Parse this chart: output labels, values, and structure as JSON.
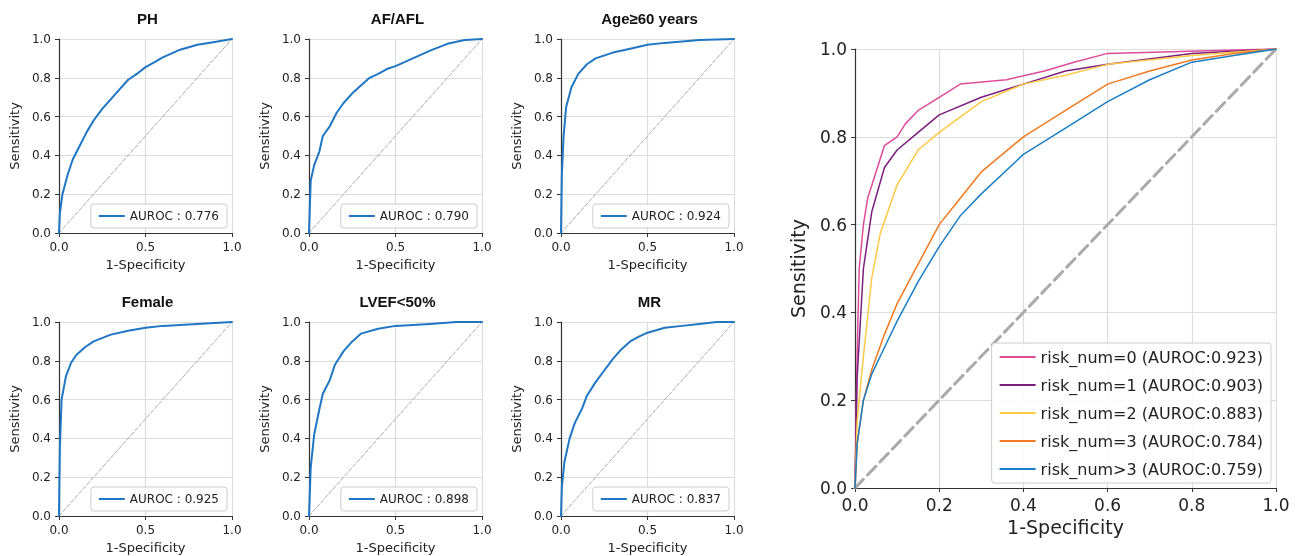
{
  "chart_data": [
    {
      "type": "line",
      "title": "PH",
      "xlabel": "1-Specificity",
      "ylabel": "Sensitivity",
      "xlim": [
        0,
        1
      ],
      "ylim": [
        0,
        1
      ],
      "xticks": [
        {
          "value": 0,
          "label": "0.0"
        },
        {
          "value": 0.5,
          "label": "0.5"
        },
        {
          "value": 1,
          "label": "1.0"
        }
      ],
      "yticks": [
        {
          "value": 0,
          "label": "0.0"
        },
        {
          "value": 0.2,
          "label": "0.2"
        },
        {
          "value": 0.4,
          "label": "0.4"
        },
        {
          "value": 0.6,
          "label": "0.6"
        },
        {
          "value": 0.8,
          "label": "0.8"
        },
        {
          "value": 1,
          "label": "1.0"
        }
      ],
      "grid": true,
      "legend": "bottom right",
      "series": [
        {
          "name": "AUROC : 0.776",
          "color": "#1f77c4",
          "x": [
            0,
            0.005,
            0.02,
            0.05,
            0.08,
            0.12,
            0.16,
            0.2,
            0.25,
            0.3,
            0.35,
            0.4,
            0.45,
            0.5,
            0.55,
            0.6,
            0.7,
            0.8,
            0.9,
            1
          ],
          "values": [
            0,
            0.1,
            0.2,
            0.3,
            0.38,
            0.45,
            0.52,
            0.58,
            0.64,
            0.69,
            0.74,
            0.79,
            0.82,
            0.855,
            0.88,
            0.905,
            0.945,
            0.97,
            0.985,
            1
          ]
        },
        {
          "color": "#aaaaaa",
          "line_style": "dashed",
          "x": [
            0,
            1
          ],
          "values": [
            0,
            1
          ]
        }
      ]
    },
    {
      "type": "line",
      "title": "AF/AFL",
      "xlabel": "1-Specificity",
      "ylabel": "Sensitivity",
      "xlim": [
        0,
        1
      ],
      "ylim": [
        0,
        1
      ],
      "xticks": [
        {
          "value": 0,
          "label": "0.0"
        },
        {
          "value": 0.5,
          "label": "0.5"
        },
        {
          "value": 1,
          "label": "1.0"
        }
      ],
      "yticks": [
        {
          "value": 0,
          "label": "0.0"
        },
        {
          "value": 0.2,
          "label": "0.2"
        },
        {
          "value": 0.4,
          "label": "0.4"
        },
        {
          "value": 0.6,
          "label": "0.6"
        },
        {
          "value": 0.8,
          "label": "0.8"
        },
        {
          "value": 1,
          "label": "1.0"
        }
      ],
      "grid": true,
      "legend": "bottom right",
      "series": [
        {
          "name": "AUROC : 0.790",
          "color": "#1f77c4",
          "x": [
            0,
            0.01,
            0.03,
            0.06,
            0.08,
            0.12,
            0.16,
            0.2,
            0.25,
            0.3,
            0.35,
            0.4,
            0.45,
            0.5,
            0.6,
            0.7,
            0.8,
            0.9,
            1
          ],
          "values": [
            0,
            0.27,
            0.35,
            0.42,
            0.5,
            0.55,
            0.62,
            0.67,
            0.72,
            0.76,
            0.8,
            0.82,
            0.845,
            0.86,
            0.9,
            0.94,
            0.975,
            0.995,
            1
          ]
        },
        {
          "color": "#aaaaaa",
          "line_style": "dashed",
          "x": [
            0,
            1
          ],
          "values": [
            0,
            1
          ]
        }
      ]
    },
    {
      "type": "line",
      "title": "Age≥60 years",
      "xlabel": "1-Specificity",
      "ylabel": "Sensitivity",
      "xlim": [
        0,
        1
      ],
      "ylim": [
        0,
        1
      ],
      "xticks": [
        {
          "value": 0,
          "label": "0.0"
        },
        {
          "value": 0.5,
          "label": "0.5"
        },
        {
          "value": 1,
          "label": "1.0"
        }
      ],
      "yticks": [
        {
          "value": 0,
          "label": "0.0"
        },
        {
          "value": 0.2,
          "label": "0.2"
        },
        {
          "value": 0.4,
          "label": "0.4"
        },
        {
          "value": 0.6,
          "label": "0.6"
        },
        {
          "value": 0.8,
          "label": "0.8"
        },
        {
          "value": 1,
          "label": "1.0"
        }
      ],
      "grid": true,
      "legend": "bottom right",
      "series": [
        {
          "name": "AUROC : 0.924",
          "color": "#1f77c4",
          "x": [
            0,
            0.005,
            0.015,
            0.03,
            0.06,
            0.1,
            0.15,
            0.2,
            0.3,
            0.4,
            0.5,
            0.6,
            0.8,
            1
          ],
          "values": [
            0,
            0.3,
            0.5,
            0.65,
            0.75,
            0.82,
            0.87,
            0.9,
            0.93,
            0.95,
            0.97,
            0.98,
            0.995,
            1
          ]
        },
        {
          "color": "#aaaaaa",
          "line_style": "dashed",
          "x": [
            0,
            1
          ],
          "values": [
            0,
            1
          ]
        }
      ]
    },
    {
      "type": "line",
      "title": "Female",
      "xlabel": "1-Specificity",
      "ylabel": "Sensitivity",
      "xlim": [
        0,
        1
      ],
      "ylim": [
        0,
        1
      ],
      "xticks": [
        {
          "value": 0,
          "label": "0.0"
        },
        {
          "value": 0.5,
          "label": "0.5"
        },
        {
          "value": 1,
          "label": "1.0"
        }
      ],
      "yticks": [
        {
          "value": 0,
          "label": "0.0"
        },
        {
          "value": 0.2,
          "label": "0.2"
        },
        {
          "value": 0.4,
          "label": "0.4"
        },
        {
          "value": 0.6,
          "label": "0.6"
        },
        {
          "value": 0.8,
          "label": "0.8"
        },
        {
          "value": 1,
          "label": "1.0"
        }
      ],
      "grid": true,
      "legend": "bottom right",
      "series": [
        {
          "name": "AUROC : 0.925",
          "color": "#1f77c4",
          "x": [
            0,
            0.005,
            0.015,
            0.04,
            0.07,
            0.1,
            0.15,
            0.2,
            0.3,
            0.4,
            0.5,
            0.6,
            0.8,
            1
          ],
          "values": [
            0,
            0.35,
            0.6,
            0.72,
            0.79,
            0.83,
            0.87,
            0.9,
            0.935,
            0.955,
            0.97,
            0.98,
            0.99,
            1
          ]
        },
        {
          "color": "#aaaaaa",
          "line_style": "dashed",
          "x": [
            0,
            1
          ],
          "values": [
            0,
            1
          ]
        }
      ]
    },
    {
      "type": "line",
      "title": "LVEF<50%",
      "xlabel": "1-Specificity",
      "ylabel": "Sensitivity",
      "xlim": [
        0,
        1
      ],
      "ylim": [
        0,
        1
      ],
      "xticks": [
        {
          "value": 0,
          "label": "0.0"
        },
        {
          "value": 0.5,
          "label": "0.5"
        },
        {
          "value": 1,
          "label": "1.0"
        }
      ],
      "yticks": [
        {
          "value": 0,
          "label": "0.0"
        },
        {
          "value": 0.2,
          "label": "0.2"
        },
        {
          "value": 0.4,
          "label": "0.4"
        },
        {
          "value": 0.6,
          "label": "0.6"
        },
        {
          "value": 0.8,
          "label": "0.8"
        },
        {
          "value": 1,
          "label": "1.0"
        }
      ],
      "grid": true,
      "legend": "bottom right",
      "series": [
        {
          "name": "AUROC : 0.898",
          "color": "#1f77c4",
          "x": [
            0,
            0.01,
            0.03,
            0.06,
            0.08,
            0.12,
            0.15,
            0.2,
            0.25,
            0.3,
            0.4,
            0.5,
            0.7,
            0.85,
            1
          ],
          "values": [
            0,
            0.25,
            0.42,
            0.55,
            0.63,
            0.7,
            0.78,
            0.85,
            0.9,
            0.94,
            0.965,
            0.98,
            0.99,
            1,
            1
          ]
        },
        {
          "color": "#aaaaaa",
          "line_style": "dashed",
          "x": [
            0,
            1
          ],
          "values": [
            0,
            1
          ]
        }
      ]
    },
    {
      "type": "line",
      "title": "MR",
      "xlabel": "1-Specificity",
      "ylabel": "Sensitivity",
      "xlim": [
        0,
        1
      ],
      "ylim": [
        0,
        1
      ],
      "xticks": [
        {
          "value": 0,
          "label": "0.0"
        },
        {
          "value": 0.5,
          "label": "0.5"
        },
        {
          "value": 1,
          "label": "1.0"
        }
      ],
      "yticks": [
        {
          "value": 0,
          "label": "0.0"
        },
        {
          "value": 0.2,
          "label": "0.2"
        },
        {
          "value": 0.4,
          "label": "0.4"
        },
        {
          "value": 0.6,
          "label": "0.6"
        },
        {
          "value": 0.8,
          "label": "0.8"
        },
        {
          "value": 1,
          "label": "1.0"
        }
      ],
      "grid": true,
      "legend": "bottom right",
      "series": [
        {
          "name": "AUROC : 0.837",
          "color": "#1f77c4",
          "x": [
            0,
            0.005,
            0.02,
            0.05,
            0.08,
            0.12,
            0.15,
            0.2,
            0.25,
            0.3,
            0.35,
            0.4,
            0.45,
            0.5,
            0.6,
            0.7,
            0.8,
            0.9,
            1
          ],
          "values": [
            0,
            0.15,
            0.28,
            0.4,
            0.48,
            0.55,
            0.62,
            0.69,
            0.75,
            0.81,
            0.86,
            0.9,
            0.925,
            0.945,
            0.97,
            0.98,
            0.99,
            1,
            1
          ]
        },
        {
          "color": "#aaaaaa",
          "line_style": "dashed",
          "x": [
            0,
            1
          ],
          "values": [
            0,
            1
          ]
        }
      ]
    },
    {
      "type": "line",
      "xlabel": "1-Specificity",
      "ylabel": "Sensitivity",
      "xlim": [
        0,
        1
      ],
      "ylim": [
        0,
        1
      ],
      "xticks": [
        {
          "value": 0,
          "label": "0.0"
        },
        {
          "value": 0.2,
          "label": "0.2"
        },
        {
          "value": 0.4,
          "label": "0.4"
        },
        {
          "value": 0.6,
          "label": "0.6"
        },
        {
          "value": 0.8,
          "label": "0.8"
        },
        {
          "value": 1,
          "label": "1.0"
        }
      ],
      "yticks": [
        {
          "value": 0,
          "label": "0.0"
        },
        {
          "value": 0.2,
          "label": "0.2"
        },
        {
          "value": 0.4,
          "label": "0.4"
        },
        {
          "value": 0.6,
          "label": "0.6"
        },
        {
          "value": 0.8,
          "label": "0.8"
        },
        {
          "value": 1,
          "label": "1.0"
        }
      ],
      "grid": true,
      "legend": "bottom right",
      "series": [
        {
          "name": "risk_num=0 (AUROC:0.923)",
          "color": "#dd4c99",
          "x": [
            0,
            0.005,
            0.01,
            0.02,
            0.03,
            0.05,
            0.07,
            0.1,
            0.12,
            0.15,
            0.2,
            0.25,
            0.36,
            0.45,
            0.52,
            0.6,
            1
          ],
          "values": [
            0,
            0.3,
            0.5,
            0.6,
            0.66,
            0.72,
            0.78,
            0.8,
            0.83,
            0.86,
            0.89,
            0.92,
            0.93,
            0.95,
            0.97,
            0.99,
            1
          ]
        },
        {
          "name": "risk_num=1 (AUROC:0.903)",
          "color": "#7b1f7f",
          "x": [
            0,
            0.005,
            0.02,
            0.04,
            0.07,
            0.1,
            0.15,
            0.2,
            0.3,
            0.4,
            0.5,
            0.6,
            0.8,
            1
          ],
          "values": [
            0,
            0.25,
            0.5,
            0.63,
            0.73,
            0.77,
            0.81,
            0.85,
            0.89,
            0.92,
            0.95,
            0.965,
            0.99,
            1
          ]
        },
        {
          "name": "risk_num=2 (AUROC:0.883)",
          "color": "#ffc845",
          "x": [
            0,
            0.005,
            0.02,
            0.04,
            0.06,
            0.1,
            0.15,
            0.2,
            0.3,
            0.4,
            0.5,
            0.6,
            0.8,
            1
          ],
          "values": [
            0,
            0.15,
            0.3,
            0.48,
            0.58,
            0.69,
            0.77,
            0.81,
            0.88,
            0.92,
            0.94,
            0.965,
            0.985,
            1
          ]
        },
        {
          "name": "risk_num=3 (AUROC:0.784)",
          "color": "#f07a1f",
          "x": [
            0,
            0.005,
            0.02,
            0.04,
            0.07,
            0.1,
            0.15,
            0.2,
            0.25,
            0.3,
            0.4,
            0.5,
            0.6,
            0.7,
            0.8,
            0.9,
            1
          ],
          "values": [
            0,
            0.1,
            0.2,
            0.27,
            0.35,
            0.42,
            0.51,
            0.6,
            0.66,
            0.72,
            0.8,
            0.86,
            0.92,
            0.95,
            0.975,
            0.99,
            1
          ]
        },
        {
          "name": "risk_num>3 (AUROC:0.759)",
          "color": "#1a7fc4",
          "x": [
            0,
            0.005,
            0.02,
            0.04,
            0.07,
            0.1,
            0.15,
            0.2,
            0.25,
            0.3,
            0.4,
            0.5,
            0.6,
            0.7,
            0.8,
            0.9,
            1
          ],
          "values": [
            0,
            0.1,
            0.2,
            0.26,
            0.32,
            0.38,
            0.47,
            0.55,
            0.62,
            0.67,
            0.76,
            0.82,
            0.88,
            0.93,
            0.97,
            0.985,
            1
          ]
        },
        {
          "color": "#aaaaaa",
          "line_style": "dashed",
          "x": [
            0,
            1
          ],
          "values": [
            0,
            1
          ]
        }
      ]
    }
  ]
}
